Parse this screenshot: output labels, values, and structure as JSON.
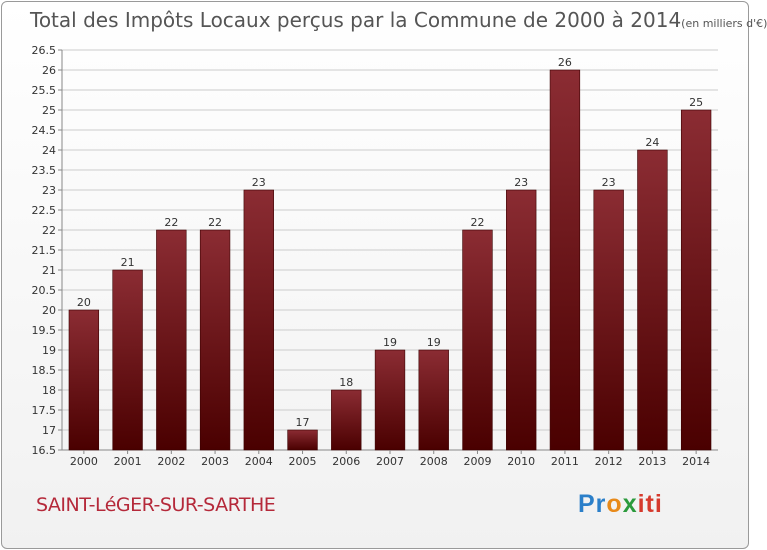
{
  "header": {
    "title": "Total des Impôts Locaux perçus par la Commune de 2000 à 2014",
    "unit": "(en milliers d'€)"
  },
  "footer": {
    "commune": "SAINT-LéGER-SUR-SARTHE",
    "brand_parts": [
      "Pr",
      "o",
      "x",
      "iti"
    ]
  },
  "colors": {
    "bar_top": "#8b2c33",
    "bar_bottom": "#4a0000",
    "grid": "#cccccc",
    "text": "#333333"
  },
  "chart_data": {
    "type": "bar",
    "title": "Total des Impôts Locaux perçus par la Commune de 2000 à 2014 (en milliers d'€)",
    "xlabel": "",
    "ylabel": "",
    "categories": [
      "2000",
      "2001",
      "2002",
      "2003",
      "2004",
      "2005",
      "2006",
      "2007",
      "2008",
      "2009",
      "2010",
      "2011",
      "2012",
      "2013",
      "2014"
    ],
    "values": [
      20,
      21,
      22,
      22,
      23,
      17,
      18,
      19,
      19,
      22,
      23,
      26,
      23,
      24,
      25
    ],
    "ylim": [
      16.5,
      26.5
    ],
    "yticks": [
      "16.5",
      "17",
      "17.5",
      "18",
      "18.5",
      "19",
      "19.5",
      "20",
      "20.5",
      "21",
      "21.5",
      "22",
      "22.5",
      "23",
      "23.5",
      "24",
      "24.5",
      "25",
      "25.5",
      "26",
      "26.5"
    ],
    "grid": true
  }
}
